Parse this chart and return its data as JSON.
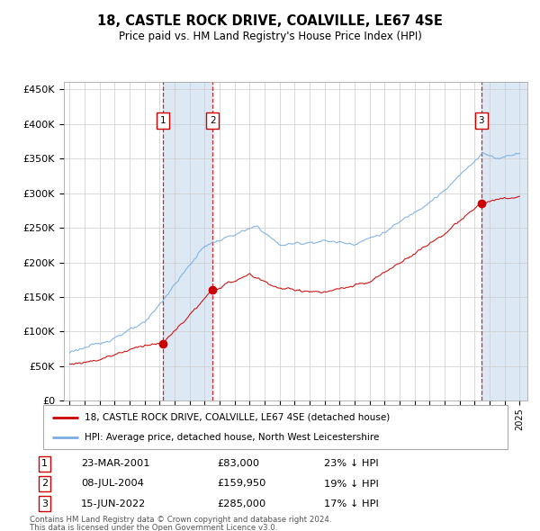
{
  "title": "18, CASTLE ROCK DRIVE, COALVILLE, LE67 4SE",
  "subtitle": "Price paid vs. HM Land Registry's House Price Index (HPI)",
  "legend_line1": "18, CASTLE ROCK DRIVE, COALVILLE, LE67 4SE (detached house)",
  "legend_line2": "HPI: Average price, detached house, North West Leicestershire",
  "transactions": [
    {
      "num": 1,
      "date": "23-MAR-2001",
      "price": 83000,
      "pct": "23%",
      "dir": "↓",
      "x_year": 2001.22
    },
    {
      "num": 2,
      "date": "08-JUL-2004",
      "price": 159950,
      "pct": "19%",
      "dir": "↓",
      "x_year": 2004.52
    },
    {
      "num": 3,
      "date": "15-JUN-2022",
      "price": 285000,
      "pct": "17%",
      "dir": "↓",
      "x_year": 2022.45
    }
  ],
  "footer_line1": "Contains HM Land Registry data © Crown copyright and database right 2024.",
  "footer_line2": "This data is licensed under the Open Government Licence v3.0.",
  "hpi_color": "#7aade0",
  "price_color": "#cc0000",
  "ylim": [
    0,
    460000
  ],
  "xlim_start": 1994.6,
  "xlim_end": 2025.5,
  "background_shade_color": "#dce9f5"
}
